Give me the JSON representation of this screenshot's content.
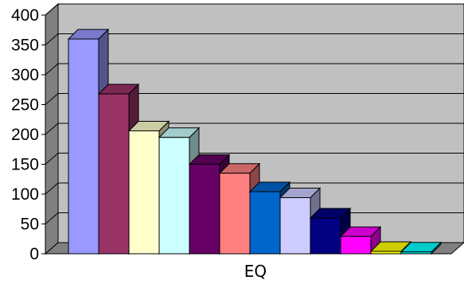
{
  "chart_data": {
    "type": "bar",
    "style": "3d-clustered-column",
    "categories": [
      "EQ"
    ],
    "series": [
      {
        "values": [
          360
        ],
        "color": "#9999FF"
      },
      {
        "values": [
          268
        ],
        "color": "#993366"
      },
      {
        "values": [
          206
        ],
        "color": "#FFFFCC"
      },
      {
        "values": [
          195
        ],
        "color": "#CCFFFF"
      },
      {
        "values": [
          150
        ],
        "color": "#660066"
      },
      {
        "values": [
          135
        ],
        "color": "#FF8080"
      },
      {
        "values": [
          104
        ],
        "color": "#0066CC"
      },
      {
        "values": [
          94
        ],
        "color": "#CCCCFF"
      },
      {
        "values": [
          60
        ],
        "color": "#000080"
      },
      {
        "values": [
          29
        ],
        "color": "#FF00FF"
      },
      {
        "values": [
          4
        ],
        "color": "#FFFF00"
      },
      {
        "values": [
          3
        ],
        "color": "#00FFFF"
      }
    ],
    "y_ticks": [
      "0",
      "50",
      "100",
      "150",
      "200",
      "250",
      "300",
      "350",
      "400"
    ],
    "ylim": [
      0,
      400
    ],
    "grid": true,
    "legend": "none",
    "plot_background": "#C0C0C0",
    "title": "",
    "xlabel": "",
    "ylabel": ""
  }
}
